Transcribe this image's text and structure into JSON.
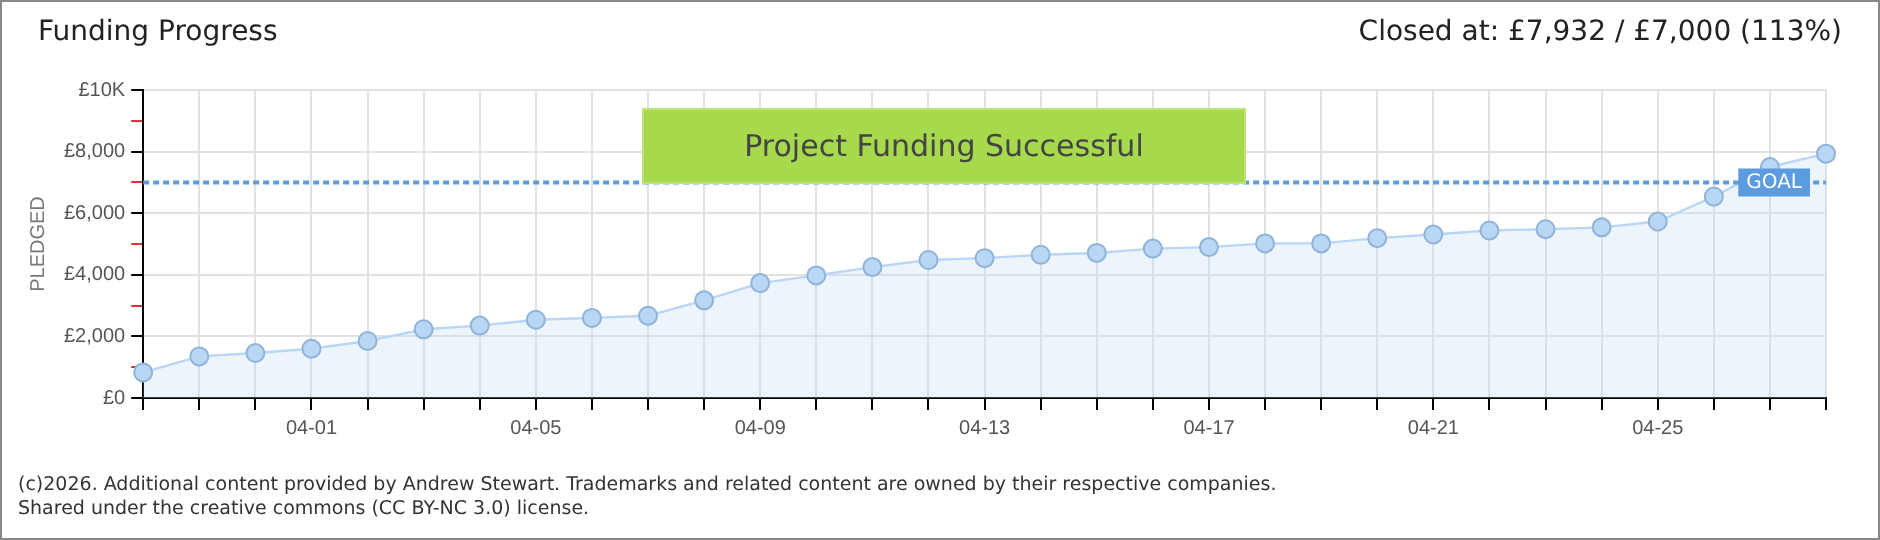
{
  "chart_data": {
    "type": "area",
    "title": "Funding Progress",
    "subtitle": "Closed at:  £7,932 / £7,000 (113%)",
    "ylabel": "PLEDGED",
    "categories": [
      null,
      null,
      null,
      "04-01",
      null,
      null,
      null,
      "04-05",
      null,
      null,
      null,
      "04-09",
      null,
      null,
      null,
      "04-13",
      null,
      null,
      null,
      "04-17",
      null,
      null,
      null,
      "04-21",
      null,
      null,
      null,
      "04-25",
      null,
      null,
      null
    ],
    "series": [
      {
        "color": "#b9d6f4",
        "values": [
          830,
          1350,
          1460,
          1600,
          1850,
          2230,
          2350,
          2540,
          2600,
          2670,
          3170,
          3730,
          3980,
          4250,
          4480,
          4540,
          4650,
          4710,
          4850,
          4900,
          5020,
          5020,
          5190,
          5310,
          5440,
          5480,
          5540,
          5730,
          6540,
          7500,
          7932
        ]
      }
    ],
    "ylim": [
      0,
      10000
    ],
    "yticks": [
      {
        "value": 0,
        "label": "£0"
      },
      {
        "value": 1000,
        "label": null
      },
      {
        "value": 2000,
        "label": "£2,000"
      },
      {
        "value": 3000,
        "label": null
      },
      {
        "value": 4000,
        "label": "£4,000"
      },
      {
        "value": 5000,
        "label": null
      },
      {
        "value": 6000,
        "label": "£6,000"
      },
      {
        "value": 7000,
        "label": null
      },
      {
        "value": 8000,
        "label": "£8,000"
      },
      {
        "value": 9000,
        "label": null
      },
      {
        "value": 10000,
        "label": "£10K"
      }
    ],
    "ref_lines": [
      {
        "axis": "y",
        "value": 7000,
        "label": "GOAL",
        "color": "#5b9be0",
        "line_style": "dotted"
      }
    ],
    "annotations": [
      "Project Funding Successful",
      "(c)2026. Additional content provided by Andrew Stewart. Trademarks and related content are owned by their respective companies.",
      "Shared under the creative commons (CC BY-NC 3.0) license."
    ],
    "grid": true,
    "legend": false,
    "marker": "circle",
    "line_style": "solid"
  }
}
